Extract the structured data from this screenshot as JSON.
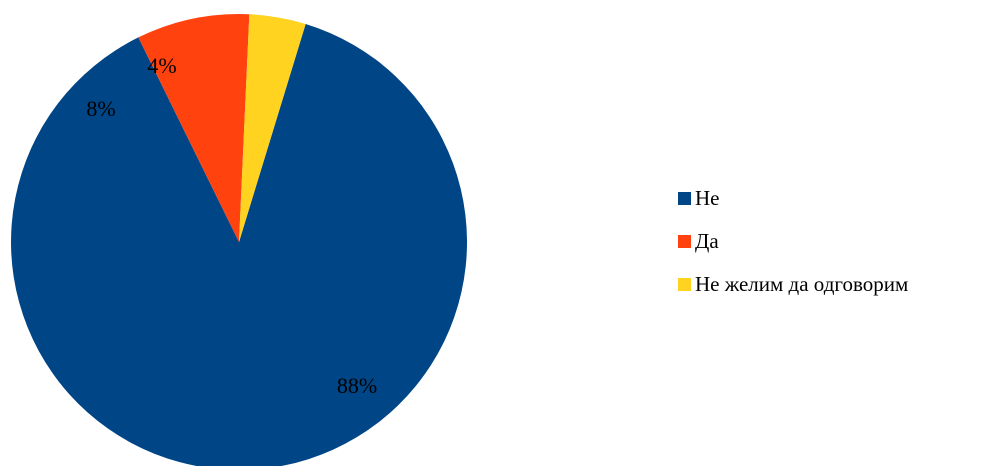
{
  "chart_data": {
    "type": "pie",
    "categories": [
      "Не",
      "Да",
      "Не желим да одговорим"
    ],
    "values": [
      88,
      8,
      4
    ],
    "data_labels": [
      "88%",
      "8%",
      "4%"
    ],
    "colors": [
      "#004586",
      "#ff420e",
      "#ffd320"
    ],
    "legend_position": "right",
    "start_angle_deg": 17,
    "direction": "clockwise"
  }
}
